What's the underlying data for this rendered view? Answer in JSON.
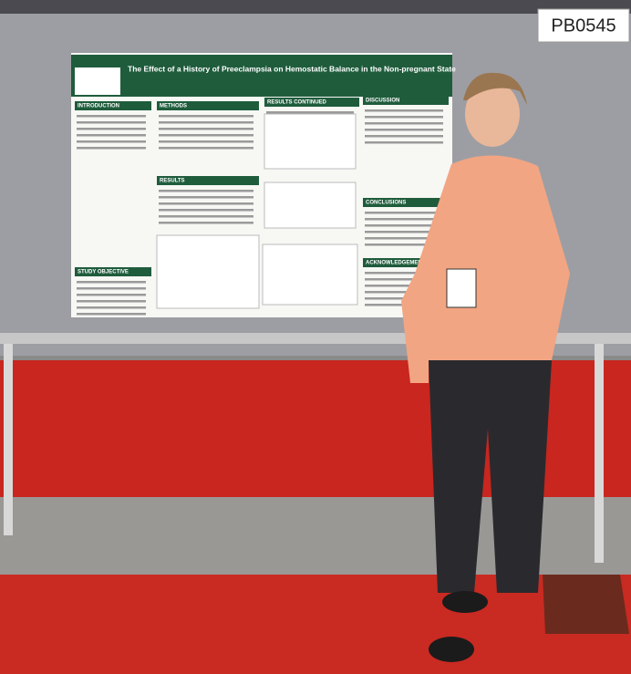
{
  "sign": {
    "code": "PB0545"
  },
  "poster": {
    "title": "The Effect of a History of Preeclampsia on Hemostatic Balance in the Non-pregnant State",
    "sections": [
      "INTRODUCTION",
      "METHODS",
      "RESULTS CONTINUED",
      "DISCUSSION",
      "RESULTS",
      "STUDY OBJECTIVE",
      "CONCLUSIONS",
      "ACKNOWLEDGEMENTS"
    ]
  }
}
